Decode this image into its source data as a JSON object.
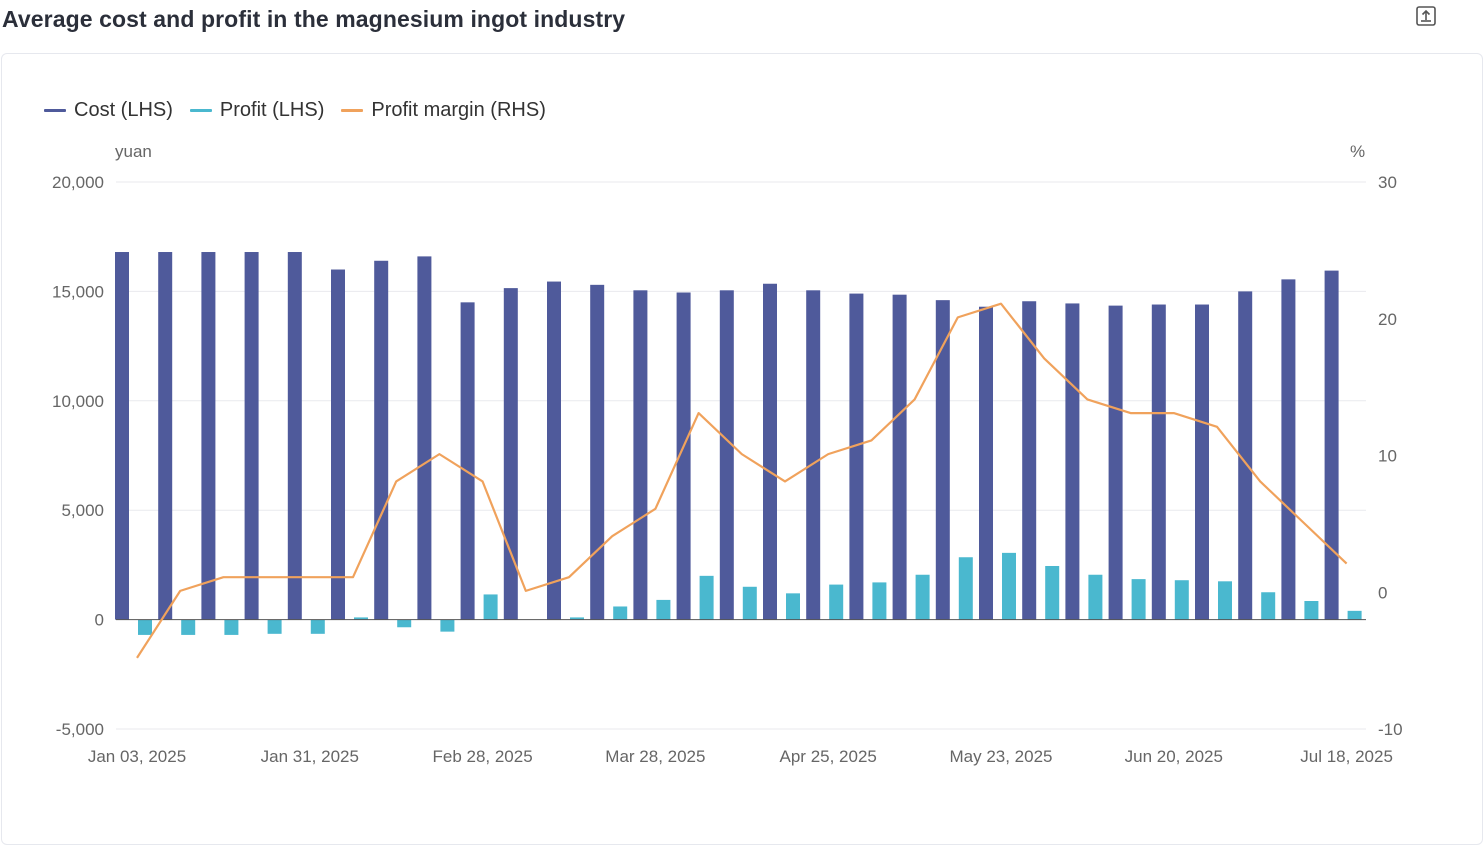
{
  "title": "Average cost and profit in the magnesium ingot industry",
  "export_icon": "export-icon",
  "colors": {
    "cost": "#4f5a9b",
    "profit": "#4ab8cf",
    "margin": "#f0a25c",
    "grid": "#e9eaee",
    "text": "#666666"
  },
  "chart_data": {
    "type": "bar",
    "legend_position": "top-left",
    "grid": true,
    "y_left": {
      "unit": "yuan",
      "range": [
        -5000,
        20000
      ],
      "ticks": [
        "-5,000",
        "0",
        "5,000",
        "10,000",
        "15,000",
        "20,000"
      ]
    },
    "y_right": {
      "unit": "%",
      "range": [
        -10,
        30
      ],
      "ticks": [
        "-10",
        "0",
        "10",
        "20",
        "30"
      ]
    },
    "x_tick_labels": [
      "Jan 03, 2025",
      "Jan 31, 2025",
      "Feb 28, 2025",
      "Mar 28, 2025",
      "Apr 25, 2025",
      "May 23, 2025",
      "Jun 20, 2025",
      "Jul 18, 2025"
    ],
    "dates": [
      "2025-01-03",
      "2025-01-10",
      "2025-01-17",
      "2025-01-24",
      "2025-01-31",
      "2025-02-07",
      "2025-02-14",
      "2025-02-21",
      "2025-02-28",
      "2025-03-07",
      "2025-03-14",
      "2025-03-21",
      "2025-03-28",
      "2025-04-04",
      "2025-04-11",
      "2025-04-18",
      "2025-04-25",
      "2025-05-02",
      "2025-05-09",
      "2025-05-16",
      "2025-05-23",
      "2025-05-30",
      "2025-06-06",
      "2025-06-13",
      "2025-06-20",
      "2025-06-27",
      "2025-07-04",
      "2025-07-11",
      "2025-07-18"
    ],
    "series": [
      {
        "name": "Cost (LHS)",
        "type": "bar",
        "axis": "left",
        "values": [
          16800,
          16800,
          16800,
          16800,
          16800,
          16000,
          16400,
          16600,
          14500,
          15150,
          15450,
          15300,
          15050,
          14950,
          15050,
          15350,
          15050,
          14900,
          14850,
          14600,
          14300,
          14550,
          14450,
          14350,
          14400,
          14400,
          15000,
          15550,
          15950
        ]
      },
      {
        "name": "Profit (LHS)",
        "type": "bar",
        "axis": "left",
        "values": [
          -700,
          -700,
          -700,
          -650,
          -650,
          100,
          -350,
          -550,
          1150,
          0,
          100,
          600,
          900,
          2000,
          1500,
          1200,
          1600,
          1700,
          2050,
          2850,
          3050,
          2450,
          2050,
          1850,
          1800,
          1750,
          1250,
          850,
          400
        ]
      },
      {
        "name": "Profit margin (RHS)",
        "type": "line",
        "axis": "right",
        "values": [
          -4.8,
          0.1,
          1.1,
          1.1,
          1.1,
          1.1,
          8.1,
          10.1,
          8.1,
          0.1,
          1.1,
          4.1,
          6.1,
          13.1,
          10.1,
          8.1,
          10.1,
          11.1,
          14.1,
          20.1,
          21.1,
          17.1,
          14.1,
          13.1,
          13.1,
          12.1,
          8.1,
          5.1,
          2.1
        ]
      }
    ]
  }
}
